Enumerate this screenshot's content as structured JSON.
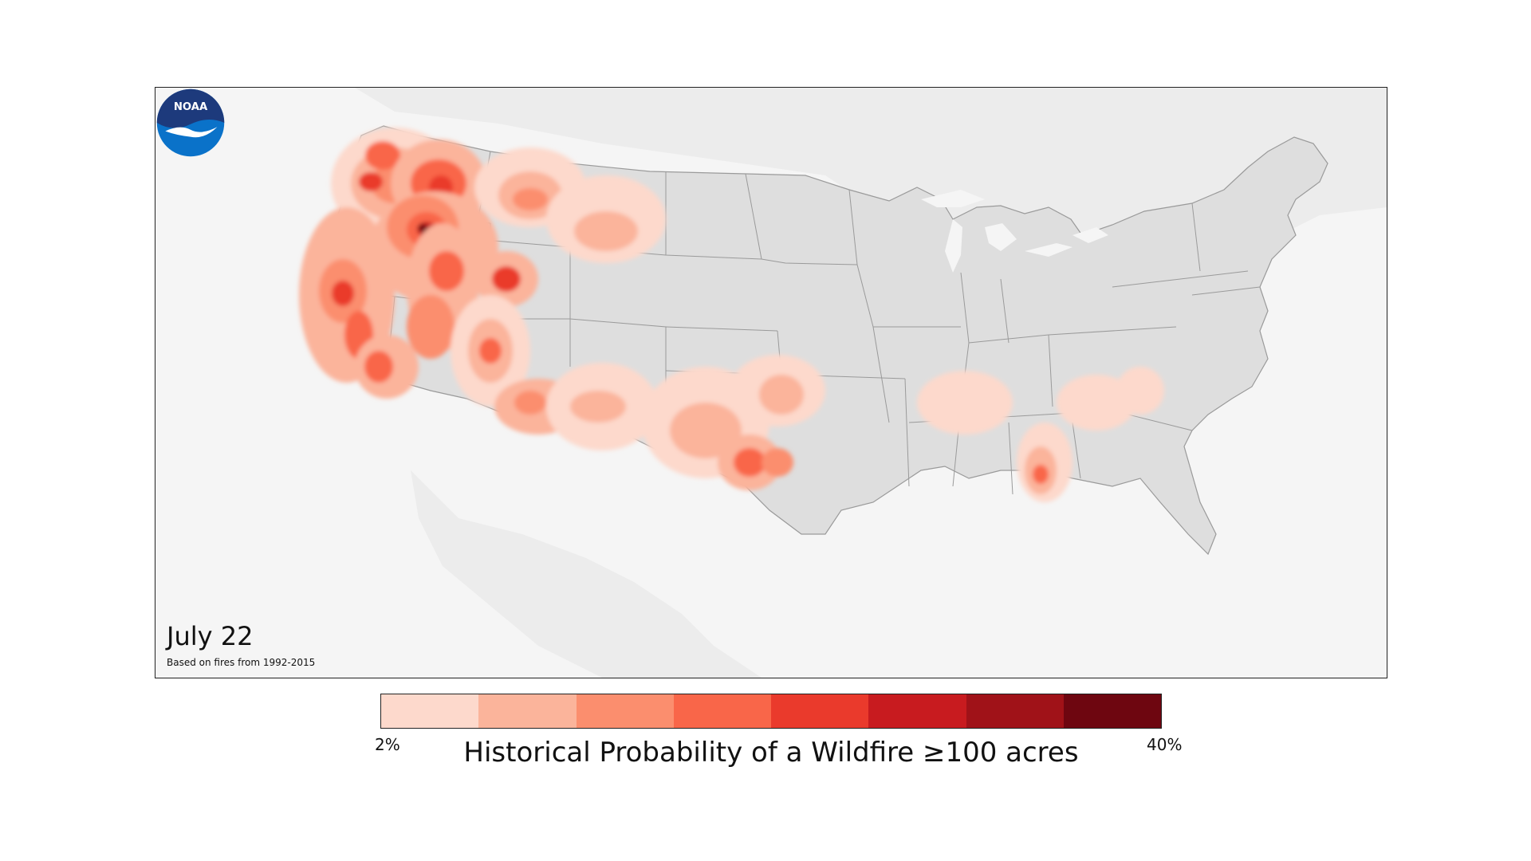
{
  "map": {
    "date": "July 22",
    "basis": "Based on fires from 1992-2015",
    "background_color": "#f5f5f5",
    "land_color": "#dedede",
    "neighbor_land_color": "#ececec",
    "border_color": "#9a9a9a",
    "logo_icon": "noaa-logo-icon",
    "logo_text": "NOAA"
  },
  "legend": {
    "title": "Historical Probability of a Wildfire ≥100 acres",
    "min_label": "2%",
    "max_label": "40%",
    "colors": [
      "#fdd9cc",
      "#fbb49b",
      "#fb8e6e",
      "#f96649",
      "#ea3a2c",
      "#c81b1f",
      "#a01218",
      "#6e0610"
    ]
  }
}
